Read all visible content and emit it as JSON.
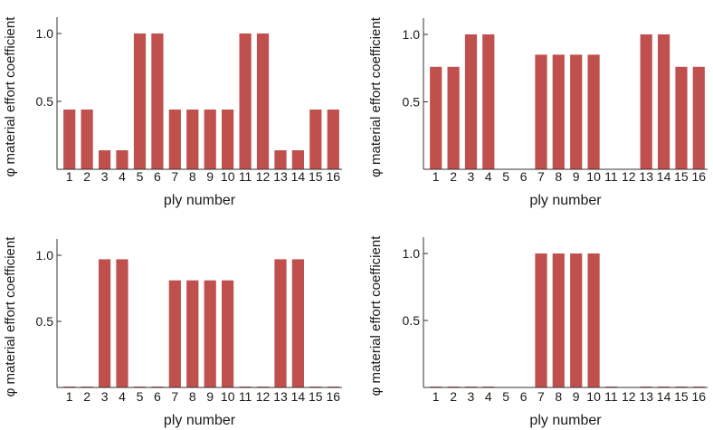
{
  "figure": {
    "panels": 4,
    "layout": "2x2 grid"
  },
  "chart_data": [
    {
      "type": "bar",
      "xlabel": "ply number",
      "ylabel": "φ  material effort  coefficient",
      "yticks": [
        "0.5",
        "1.0"
      ],
      "ylim": [
        0,
        1.0
      ],
      "categories": [
        "1",
        "2",
        "3",
        "4",
        "5",
        "6",
        "7",
        "8",
        "9",
        "10",
        "11",
        "12",
        "13",
        "14",
        "15",
        "16"
      ],
      "values": [
        0.44,
        0.44,
        0.14,
        0.14,
        1.0,
        1.0,
        0.44,
        0.44,
        0.44,
        0.44,
        1.0,
        1.0,
        0.14,
        0.14,
        0.44,
        0.44
      ],
      "grid": false,
      "bar_color": "#c0504d"
    },
    {
      "type": "bar",
      "xlabel": "ply number",
      "ylabel": "φ  material effort  coefficient",
      "yticks": [
        "0.5",
        "1.0"
      ],
      "ylim": [
        0,
        1.0
      ],
      "categories": [
        "1",
        "2",
        "3",
        "4",
        "5",
        "6",
        "7",
        "8",
        "9",
        "10",
        "11",
        "12",
        "13",
        "14",
        "15",
        "16"
      ],
      "values": [
        0.76,
        0.76,
        1.0,
        1.0,
        0,
        0,
        0.85,
        0.85,
        0.85,
        0.85,
        0,
        0,
        1.0,
        1.0,
        0.76,
        0.76
      ],
      "grid": false,
      "bar_color": "#c0504d"
    },
    {
      "type": "bar",
      "xlabel": "ply number",
      "ylabel": "φ  material effort  coefficient",
      "yticks": [
        "0.5",
        "1.0"
      ],
      "ylim": [
        0,
        1.0
      ],
      "categories": [
        "1",
        "2",
        "3",
        "4",
        "5",
        "6",
        "7",
        "8",
        "9",
        "10",
        "11",
        "12",
        "13",
        "14",
        "15",
        "16"
      ],
      "values": [
        0.005,
        0.005,
        0.97,
        0.97,
        0.005,
        0.005,
        0.81,
        0.81,
        0.81,
        0.81,
        0.005,
        0.005,
        0.97,
        0.97,
        0.005,
        0.005
      ],
      "grid": false,
      "bar_color": "#c0504d"
    },
    {
      "type": "bar",
      "xlabel": "ply number",
      "ylabel": "φ  material effort  coefficient",
      "yticks": [
        "0.5",
        "1.0"
      ],
      "ylim": [
        0,
        1.0
      ],
      "categories": [
        "1",
        "2",
        "3",
        "4",
        "5",
        "6",
        "7",
        "8",
        "9",
        "10",
        "11",
        "12",
        "13",
        "14",
        "15",
        "16"
      ],
      "values": [
        0.005,
        0.005,
        0.005,
        0.005,
        0,
        0,
        1.0,
        1.0,
        1.0,
        1.0,
        0.005,
        0,
        0.005,
        0.005,
        0.005,
        0.005
      ],
      "grid": false,
      "bar_color": "#c0504d"
    }
  ]
}
